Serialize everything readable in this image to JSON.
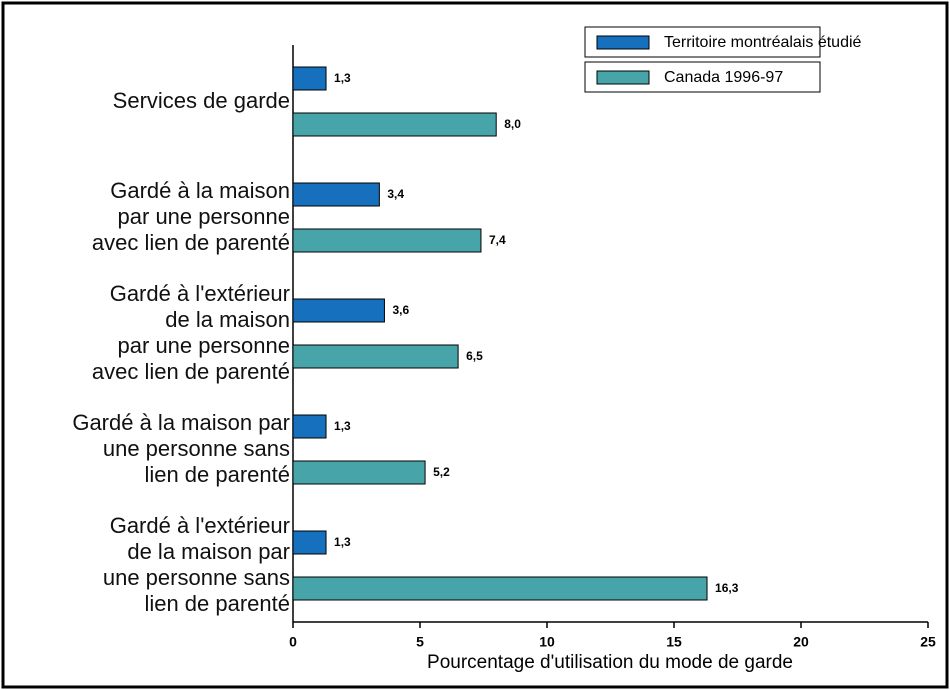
{
  "chart_data": {
    "type": "hbar",
    "xlabel": "Pourcentage d'utilisation du mode de garde",
    "categories": [
      "Services de garde",
      "Gardé à la maison\npar une personne\navec lien de parenté",
      "Gardé à l'extérieur\nde la maison\npar une personne\navec lien de parenté",
      "Gardé à la maison par\nune personne sans\nlien de parenté",
      "Gardé à l'extérieur\nde la maison par\nune personne sans\nlien de parenté"
    ],
    "series": [
      {
        "name": "Territoire montréalais étudié",
        "color": "#1670bd",
        "values": [
          1.3,
          3.4,
          3.6,
          1.3,
          1.3
        ],
        "value_labels": [
          "1,3",
          "3,4",
          "3,6",
          "1,3",
          "1,3"
        ]
      },
      {
        "name": "Canada 1996-97",
        "color": "#47a5aa",
        "values": [
          8.0,
          7.4,
          6.5,
          5.2,
          16.3
        ],
        "value_labels": [
          "8,0",
          "7,4",
          "6,5",
          "5,2",
          "16,3"
        ]
      }
    ],
    "xlim": [
      0,
      25
    ],
    "xticks": [
      0,
      5,
      10,
      15,
      20,
      25
    ],
    "legend": "top-right"
  }
}
